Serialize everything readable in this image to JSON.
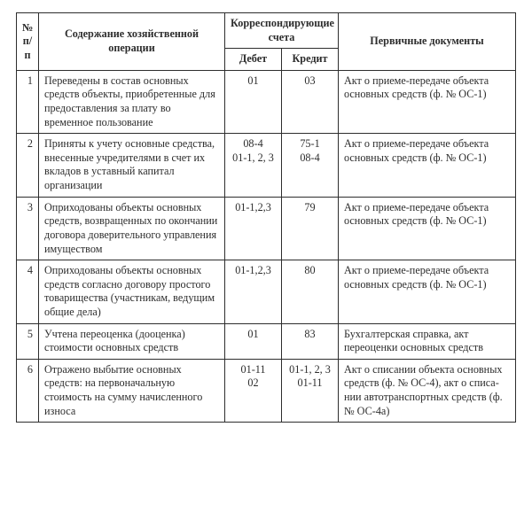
{
  "table": {
    "headers": {
      "num": "№ п/п",
      "desc": "Содержание хозяйственной операции",
      "corr": "Корреспондирующие счета",
      "debit": "Дебет",
      "credit": "Кредит",
      "docs": "Первичные документы"
    },
    "rows": [
      {
        "n": "1",
        "desc": "Переведены в состав основных средств объекты, приобретен­ные для предоставления за пла­ту во временное пользование",
        "debit": "01",
        "credit": "03",
        "doc": "Акт о приеме-передаче объекта основных средств (ф. № ОС-1)"
      },
      {
        "n": "2",
        "desc": "Приняты к учету основные средства, внесенные учредите­лями в счет их вкладов в ус­тавный капитал организации",
        "debit": "08-4\n01-1, 2, 3",
        "credit": "75-1\n08-4",
        "doc": "Акт о приеме-передаче объекта основных средств (ф. № ОС-1)"
      },
      {
        "n": "3",
        "desc": "Оприходованы объекты ос­новных средств, возвращен­ных по окончании договора доверительного управления имуществом",
        "debit": "01-1,2,3",
        "credit": "79",
        "doc": "Акт о приеме-передаче объекта основных средств (ф. № ОС-1)"
      },
      {
        "n": "4",
        "desc": "Оприходованы объекты ос­новных средств согласно до­говору простого товарищества (участникам, ведущим общие дела)",
        "debit": "01-1,2,3",
        "credit": "80",
        "doc": "Акт о приеме-передаче объекта основных средств (ф. № ОС-1)"
      },
      {
        "n": "5",
        "desc": "Учтена переоценка (дооценка) стоимости основных средств",
        "debit": "01",
        "credit": "83",
        "doc": "Бухгалтерская справка, акт переоценки основ­ных средств"
      },
      {
        "n": "6",
        "desc": "Отражено выбытие основных средств: на первоначальную стоимость на сумму начис­ленного износа",
        "debit": "01-11\n02",
        "credit": "01-1, 2, 3\n01-11",
        "doc": "Акт о списании объекта основных средств (ф. № ОС-4), акт о списа­нии автотранспортных средств (ф. № ОС-4а)"
      }
    ]
  }
}
